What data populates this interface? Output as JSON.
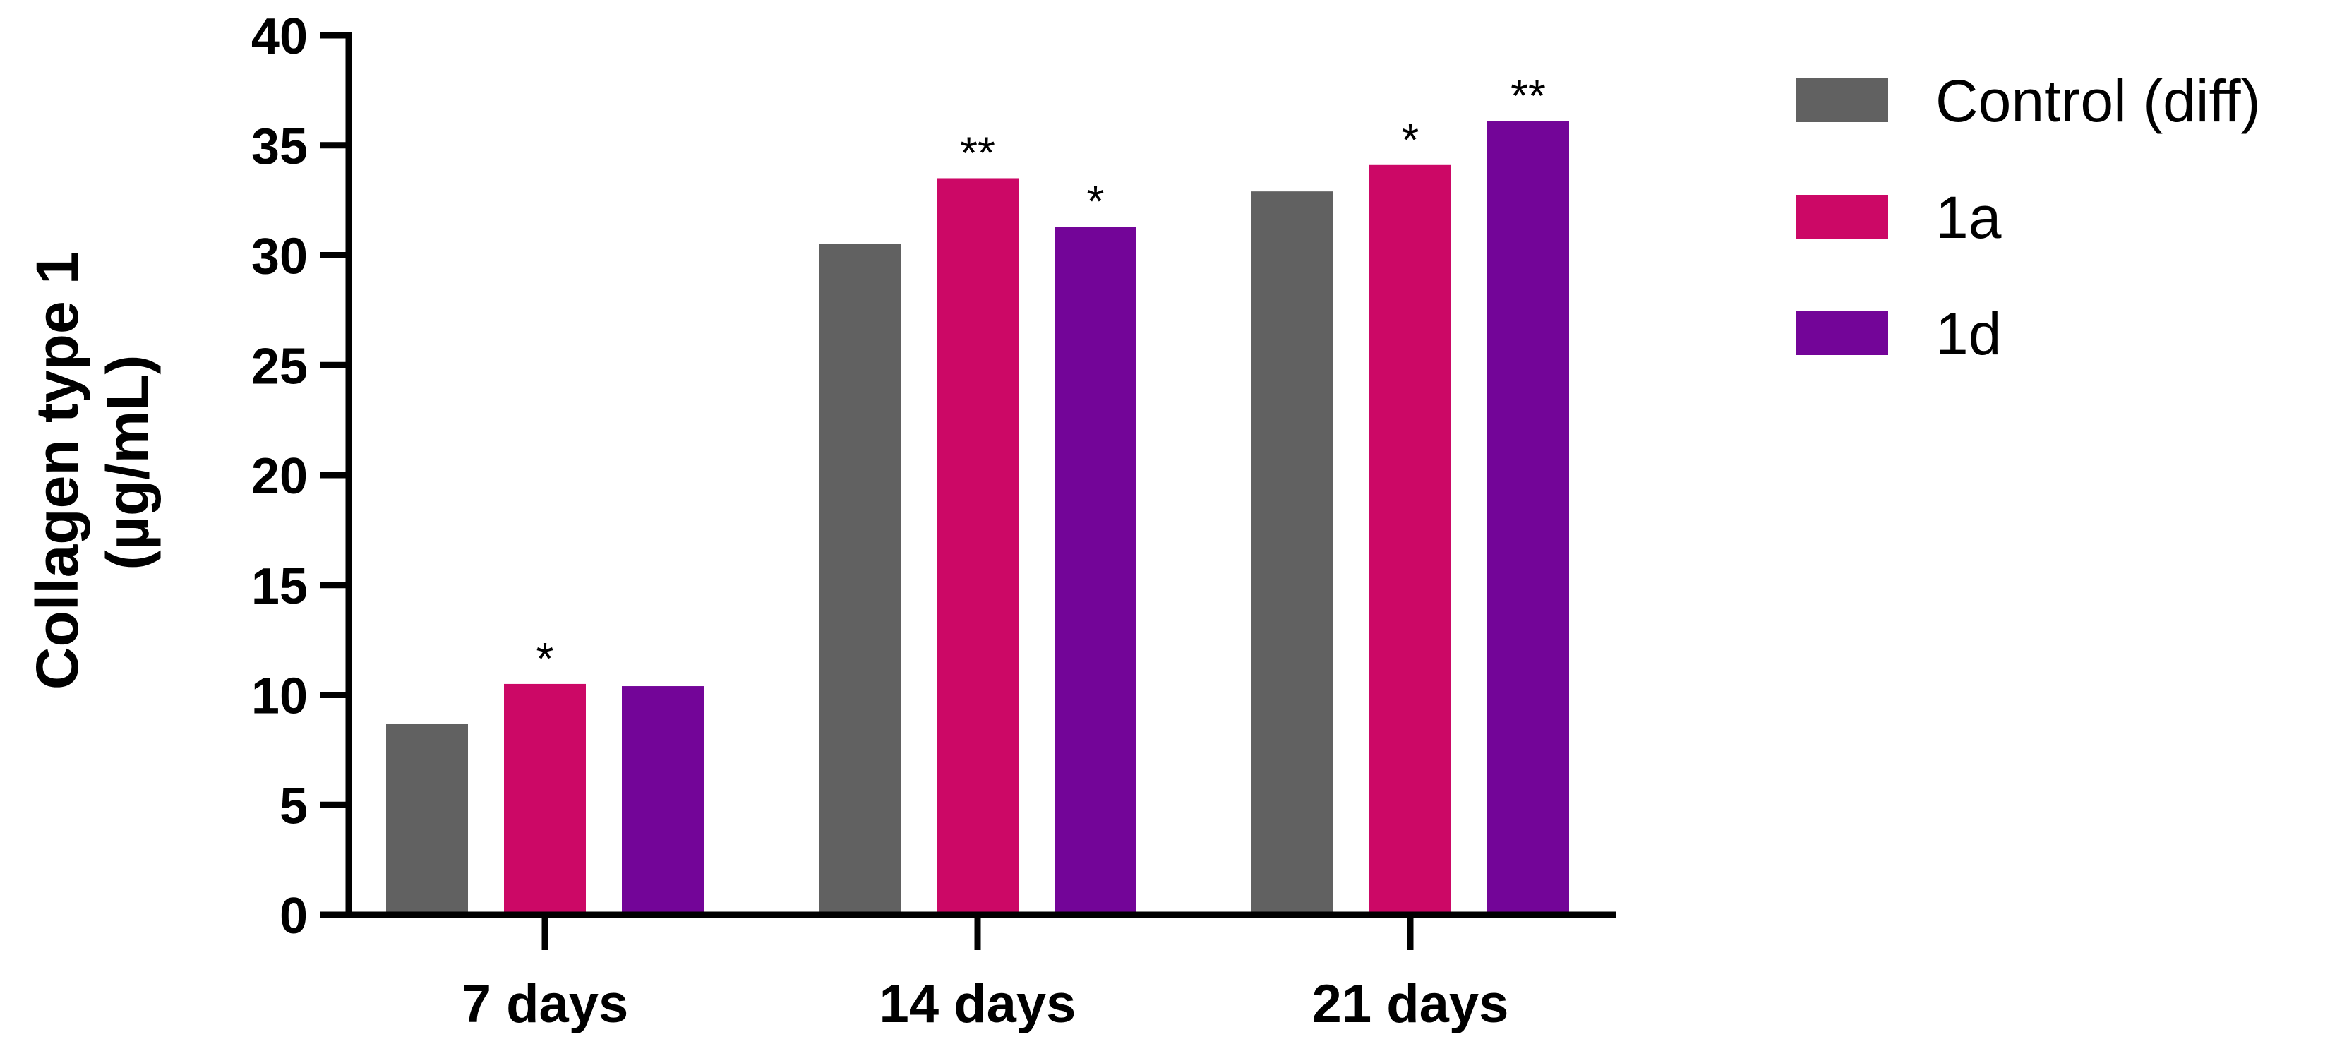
{
  "chart_data": {
    "type": "bar",
    "title": "",
    "xlabel": "",
    "ylabel_lines": [
      "Collagen type 1",
      "(µg/mL)"
    ],
    "ylim": [
      0,
      40
    ],
    "yticks": [
      0,
      5,
      10,
      15,
      20,
      25,
      30,
      35,
      40
    ],
    "categories": [
      "7 days",
      "14 days",
      "21 days"
    ],
    "series": [
      {
        "name": "Control (diff)",
        "color": "#616161",
        "values": [
          8.7,
          30.5,
          32.9
        ],
        "significance": [
          "",
          "",
          ""
        ]
      },
      {
        "name": "1a",
        "color": "#CC0866",
        "values": [
          10.5,
          33.5,
          34.1
        ],
        "significance": [
          "*",
          "**",
          "*"
        ]
      },
      {
        "name": "1d",
        "color": "#730598",
        "values": [
          10.4,
          31.3,
          36.1
        ],
        "significance": [
          "",
          "*",
          "**"
        ]
      }
    ],
    "grid": false,
    "legend_position": "right"
  }
}
